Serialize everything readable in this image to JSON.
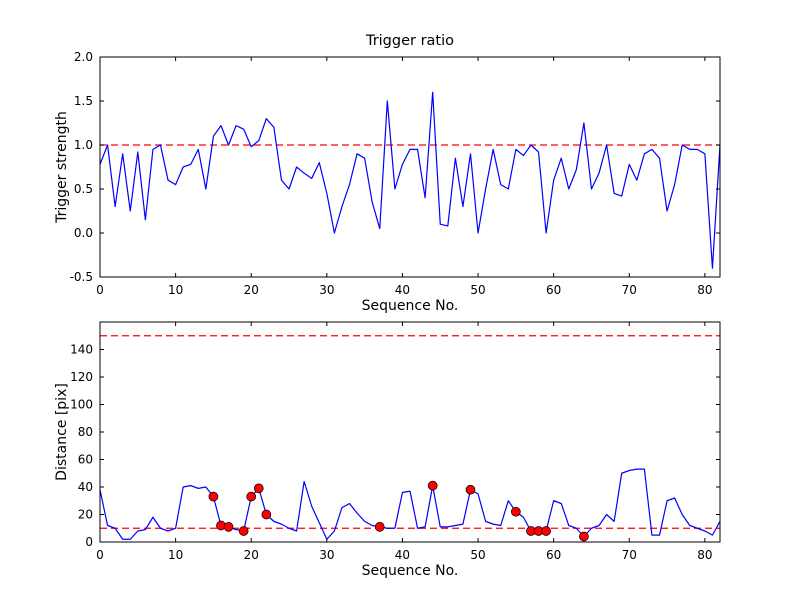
{
  "figure": {
    "background": "#ffffff"
  },
  "chart_data": [
    {
      "type": "line",
      "title": "Trigger ratio",
      "xlabel": "Sequence No.",
      "ylabel": "Trigger strength",
      "xlim": [
        0,
        82
      ],
      "ylim": [
        -0.5,
        2.0
      ],
      "grid": false,
      "legend": "none",
      "xticks": [
        0,
        10,
        20,
        30,
        40,
        50,
        60,
        70,
        80
      ],
      "xtick_labels": [
        "0",
        "10",
        "20",
        "30",
        "40",
        "50",
        "60",
        "70",
        "80"
      ],
      "yticks": [
        -0.5,
        0.0,
        0.5,
        1.0,
        1.5,
        2.0
      ],
      "ytick_labels": [
        "-0.5",
        "0.0",
        "0.5",
        "1.0",
        "1.5",
        "2.0"
      ],
      "line_color": "#0000ff",
      "threshold_color": "#ff0000",
      "threshold_lines": [
        1.0
      ],
      "values": [
        0.78,
        1.0,
        0.3,
        0.9,
        0.25,
        0.92,
        0.15,
        0.95,
        1.0,
        0.6,
        0.55,
        0.75,
        0.78,
        0.95,
        0.5,
        1.1,
        1.22,
        1.0,
        1.22,
        1.18,
        0.98,
        1.05,
        1.3,
        1.2,
        0.6,
        0.5,
        0.75,
        0.68,
        0.62,
        0.8,
        0.45,
        0.0,
        0.3,
        0.55,
        0.9,
        0.85,
        0.35,
        0.05,
        1.5,
        0.5,
        0.78,
        0.95,
        0.95,
        0.4,
        1.6,
        0.1,
        0.08,
        0.85,
        0.3,
        0.9,
        0.0,
        0.5,
        0.95,
        0.55,
        0.5,
        0.95,
        0.88,
        1.0,
        0.92,
        0.0,
        0.6,
        0.85,
        0.5,
        0.72,
        1.25,
        0.5,
        0.68,
        1.0,
        0.45,
        0.42,
        0.78,
        0.6,
        0.9,
        0.95,
        0.85,
        0.25,
        0.55,
        1.0,
        0.95,
        0.95,
        0.9,
        -0.4,
        1.0
      ]
    },
    {
      "type": "line+scatter",
      "title": "",
      "xlabel": "Sequence No.",
      "ylabel": "Distance [pix]",
      "xlim": [
        0,
        82
      ],
      "ylim": [
        0,
        160
      ],
      "grid": false,
      "legend": "none",
      "xticks": [
        0,
        10,
        20,
        30,
        40,
        50,
        60,
        70,
        80
      ],
      "xtick_labels": [
        "0",
        "10",
        "20",
        "30",
        "40",
        "50",
        "60",
        "70",
        "80"
      ],
      "yticks": [
        0,
        20,
        40,
        60,
        80,
        100,
        120,
        140
      ],
      "ytick_labels": [
        "0",
        "20",
        "40",
        "60",
        "80",
        "100",
        "120",
        "140"
      ],
      "line_color": "#0000ff",
      "threshold_color": "#ff0000",
      "threshold_lines": [
        150,
        10
      ],
      "values": [
        38,
        12,
        10,
        2,
        2,
        8,
        9,
        18,
        10,
        8,
        10,
        40,
        41,
        39,
        40,
        33,
        12,
        11,
        9,
        8,
        33,
        39,
        20,
        15,
        13,
        10,
        8,
        44,
        26,
        14,
        2,
        8,
        25,
        28,
        21,
        15,
        12,
        11,
        10,
        10,
        36,
        37,
        10,
        11,
        41,
        11,
        11,
        12,
        13,
        38,
        35,
        15,
        13,
        12,
        30,
        22,
        18,
        8,
        8,
        8,
        30,
        28,
        12,
        10,
        4,
        10,
        12,
        20,
        15,
        50,
        52,
        53,
        53,
        5,
        5,
        30,
        32,
        20,
        12,
        10,
        8,
        5,
        15
      ],
      "scatter": {
        "color": "#ff0000",
        "points": [
          [
            15,
            33
          ],
          [
            16,
            12
          ],
          [
            17,
            11
          ],
          [
            19,
            8
          ],
          [
            20,
            33
          ],
          [
            21,
            39
          ],
          [
            22,
            20
          ],
          [
            37,
            11
          ],
          [
            44,
            41
          ],
          [
            49,
            38
          ],
          [
            55,
            22
          ],
          [
            57,
            8
          ],
          [
            58,
            8
          ],
          [
            59,
            8
          ],
          [
            64,
            4
          ]
        ]
      }
    }
  ]
}
